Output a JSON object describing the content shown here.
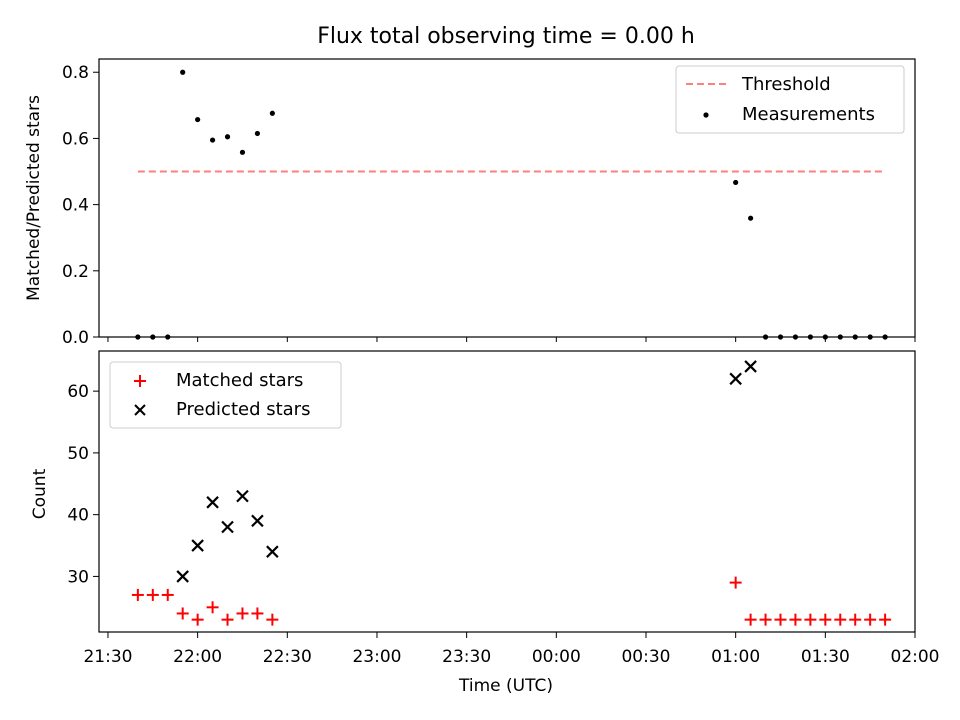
{
  "chart_data": [
    {
      "type": "scatter",
      "title": "Flux total observing time = 0.00 h",
      "xlabel": "",
      "ylabel": "Matched/Predicted stars",
      "xlim": [
        "21:27",
        "02:00"
      ],
      "ylim": [
        0,
        0.84
      ],
      "yticks": [
        0.0,
        0.2,
        0.4,
        0.6,
        0.8
      ],
      "ytick_labels": [
        "0.0",
        "0.2",
        "0.4",
        "0.6",
        "0.8"
      ],
      "legend_position": "top-right",
      "threshold": {
        "name": "Threshold",
        "value": 0.5,
        "x_range": [
          "21:40",
          "01:50"
        ],
        "color": "#ff7f7f",
        "style": "dashed"
      },
      "series": [
        {
          "name": "Measurements",
          "marker": "dot",
          "color": "#000000",
          "x": [
            "21:40",
            "21:45",
            "21:50",
            "21:55",
            "22:00",
            "22:05",
            "22:10",
            "22:15",
            "22:20",
            "22:25",
            "01:00",
            "01:05",
            "01:10",
            "01:15",
            "01:20",
            "01:25",
            "01:30",
            "01:35",
            "01:40",
            "01:45",
            "01:50"
          ],
          "y": [
            0.0,
            0.0,
            0.0,
            0.8,
            0.657,
            0.595,
            0.605,
            0.558,
            0.615,
            0.676,
            0.467,
            0.359,
            0.0,
            0.0,
            0.0,
            0.0,
            0.0,
            0.0,
            0.0,
            0.0,
            0.0
          ]
        }
      ]
    },
    {
      "type": "scatter",
      "title": "",
      "xlabel": "Time (UTC)",
      "ylabel": "Count",
      "xlim": [
        "21:27",
        "02:00"
      ],
      "ylim": [
        21,
        66.5
      ],
      "yticks": [
        30,
        40,
        50,
        60
      ],
      "ytick_labels": [
        "30",
        "40",
        "50",
        "60"
      ],
      "xticks": [
        "21:30",
        "22:00",
        "22:30",
        "23:00",
        "23:30",
        "00:00",
        "00:30",
        "01:00",
        "01:30",
        "02:00"
      ],
      "xtick_labels": [
        "21:30",
        "22:00",
        "22:30",
        "23:00",
        "23:30",
        "00:00",
        "00:30",
        "01:00",
        "01:30",
        "02:00"
      ],
      "legend_position": "top-left",
      "series": [
        {
          "name": "Matched stars",
          "marker": "plus",
          "color": "#ff0000",
          "x": [
            "21:40",
            "21:45",
            "21:50",
            "21:55",
            "22:00",
            "22:05",
            "22:10",
            "22:15",
            "22:20",
            "22:25",
            "01:00",
            "01:05",
            "01:10",
            "01:15",
            "01:20",
            "01:25",
            "01:30",
            "01:35",
            "01:40",
            "01:45",
            "01:50"
          ],
          "y": [
            27,
            27,
            27,
            24,
            23,
            25,
            23,
            24,
            24,
            23,
            29,
            23,
            23,
            23,
            23,
            23,
            23,
            23,
            23,
            23,
            23
          ]
        },
        {
          "name": "Predicted stars",
          "marker": "x",
          "color": "#000000",
          "x": [
            "21:55",
            "22:00",
            "22:05",
            "22:10",
            "22:15",
            "22:20",
            "22:25",
            "01:00",
            "01:05"
          ],
          "y": [
            30,
            35,
            42,
            38,
            43,
            39,
            34,
            62,
            64
          ]
        }
      ]
    }
  ]
}
